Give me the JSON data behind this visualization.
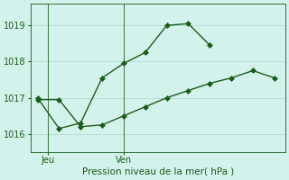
{
  "upper_x": [
    0,
    1,
    2,
    3,
    4,
    5,
    6,
    7,
    8
  ],
  "upper_y": [
    1017.0,
    1016.15,
    1016.3,
    1017.55,
    1017.95,
    1018.25,
    1019.0,
    1019.05,
    1018.45
  ],
  "lower_x": [
    0,
    1,
    2,
    3,
    4,
    5,
    6,
    7,
    8,
    9,
    10,
    11
  ],
  "lower_y": [
    1016.95,
    1016.95,
    1016.2,
    1016.25,
    1016.5,
    1016.75,
    1017.0,
    1017.2,
    1017.4,
    1017.55,
    1017.75,
    1017.55
  ],
  "color": "#1a5c1a",
  "bg_color": "#d4f2ec",
  "grid_color": "#aad8d0",
  "xlabel": "Pression niveau de la mer( hPa )",
  "xtick_positions": [
    0.5,
    4.0
  ],
  "xtick_labels": [
    "Jeu",
    "Ven"
  ],
  "vline_positions": [
    0.5,
    4.0
  ],
  "yticks": [
    1016,
    1017,
    1018,
    1019
  ],
  "ylim": [
    1015.5,
    1019.6
  ],
  "xlim": [
    -0.3,
    11.5
  ]
}
